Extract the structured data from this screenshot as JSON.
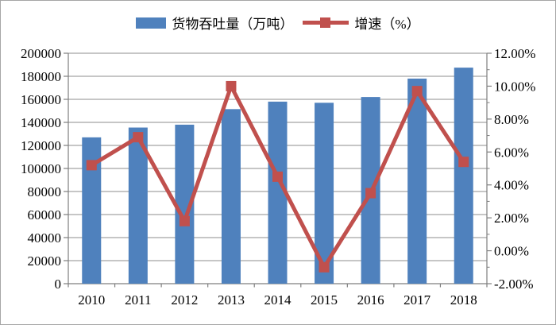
{
  "chart_data": {
    "type": "bar",
    "subtype": "bar-line-combo",
    "categories": [
      "2010",
      "2011",
      "2012",
      "2013",
      "2014",
      "2015",
      "2016",
      "2017",
      "2018"
    ],
    "series": [
      {
        "name": "货物吞吐量（万吨）",
        "type": "bar",
        "axis": "left",
        "values": [
          127000,
          135500,
          138000,
          151500,
          158000,
          157000,
          162000,
          178000,
          187500
        ]
      },
      {
        "name": "增速（%）",
        "type": "line",
        "axis": "right",
        "values": [
          5.2,
          6.9,
          1.8,
          10.0,
          4.5,
          -1.0,
          3.5,
          9.7,
          5.4
        ]
      }
    ],
    "left_axis": {
      "min": 0,
      "max": 200000,
      "step": 20000,
      "tick_labels": [
        "200000",
        "180000",
        "160000",
        "140000",
        "120000",
        "100000",
        "80000",
        "60000",
        "40000",
        "20000",
        "0"
      ]
    },
    "right_axis": {
      "min": -2,
      "max": 12,
      "step": 2,
      "minor_step": 1,
      "tick_labels": [
        "12.00%",
        "10.00%",
        "8.00%",
        "6.00%",
        "4.00%",
        "2.00%",
        "0.00%",
        "-2.00%"
      ]
    },
    "title": "",
    "xlabel": "",
    "ylabel": "",
    "grid": true,
    "legend_position": "top",
    "colors": {
      "bar": "#4F81BD",
      "line": "#C0504D",
      "gridline": "#8c8c8c",
      "axis": "#7f7f7f",
      "text": "#000000"
    }
  },
  "legend": {
    "bar_label": "货物吞吐量（万吨）",
    "line_label": "增速（%）"
  }
}
